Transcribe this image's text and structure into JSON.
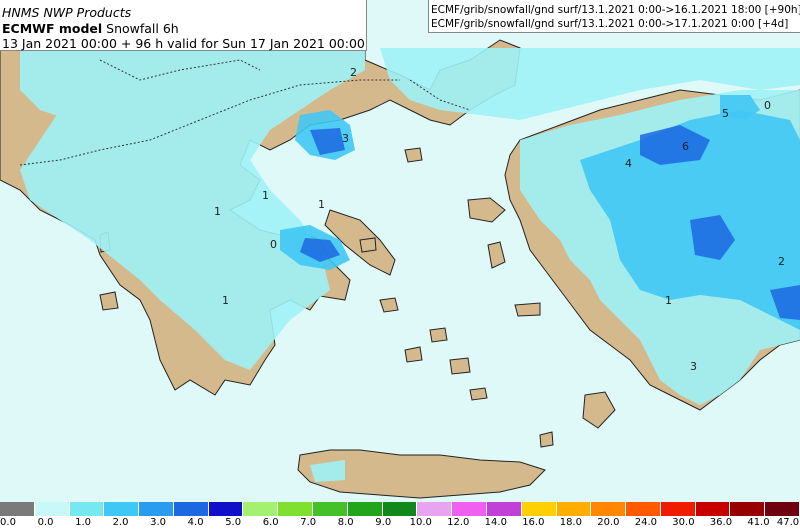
{
  "header": {
    "org": "HNMS NWP Products",
    "model": "ECMWF model",
    "product": "Snowfall 6h",
    "valid": "13 Jan 2021 00:00 + 96 h valid for Sun 17 Jan 2021 00:00"
  },
  "run_info": [
    "ECMF/grib/snowfall/gnd surf/13.1.2021 0:00->16.1.2021 18:00 [+90h]",
    "ECMF/grib/snowfall/gnd surf/13.1.2021 0:00->17.1.2021 0:00 [+4d]"
  ],
  "contour_labels": [
    "2",
    "3",
    "5",
    "0",
    "6",
    "4",
    "1",
    "1",
    "1",
    "0",
    "1",
    "2",
    "1",
    "3"
  ],
  "legend": {
    "labels": [
      "0.0",
      "0.0",
      "1.0",
      "2.0",
      "3.0",
      "4.0",
      "5.0",
      "6.0",
      "7.0",
      "8.0",
      "9.0",
      "10.0",
      "12.0",
      "14.0",
      "16.0",
      "18.0",
      "20.0",
      "24.0",
      "30.0",
      "36.0",
      "41.0",
      "47.0"
    ],
    "colors": [
      "#7a7a7a",
      "#c8f8f8",
      "#78e8f0",
      "#40c8f4",
      "#2a9cf0",
      "#1c68e0",
      "#1010c8",
      "#a4f070",
      "#80e030",
      "#44c028",
      "#22a41c",
      "#10881c",
      "#e8a4f0",
      "#f060f0",
      "#c040d8",
      "#ffd000",
      "#ffae00",
      "#ff8800",
      "#ff5a00",
      "#f01c00",
      "#c80000",
      "#980000",
      "#700010"
    ]
  },
  "colors": {
    "land": "#d4b98c",
    "sea": "#dff8f8",
    "snow_light": "#9ef2f6",
    "snow_mid": "#40c8f4",
    "snow_heavy": "#1c68e0"
  }
}
